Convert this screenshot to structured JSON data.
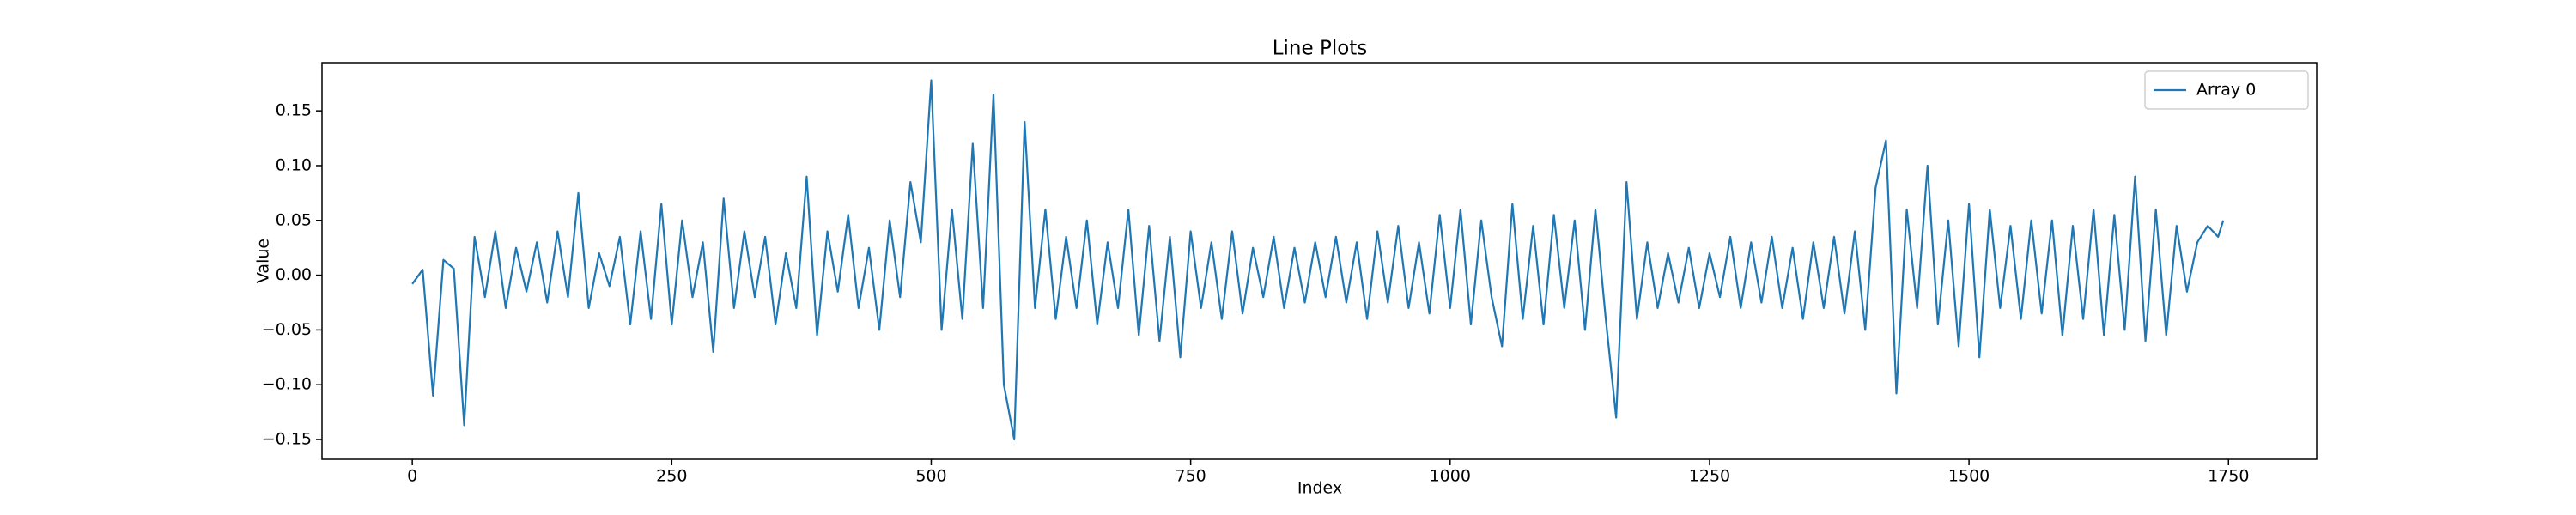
{
  "chart_data": {
    "type": "line",
    "title": "Line Plots",
    "x_label": "Index",
    "y_label": "Value",
    "x": [
      0,
      10,
      20,
      30,
      40,
      50,
      60,
      70,
      80,
      90,
      100,
      110,
      120,
      130,
      140,
      150,
      160,
      170,
      180,
      190,
      200,
      210,
      220,
      230,
      240,
      250,
      260,
      270,
      280,
      290,
      300,
      310,
      320,
      330,
      340,
      350,
      360,
      370,
      380,
      390,
      400,
      410,
      420,
      430,
      440,
      450,
      460,
      470,
      480,
      490,
      500,
      510,
      520,
      530,
      540,
      550,
      560,
      570,
      580,
      590,
      600,
      610,
      620,
      630,
      640,
      650,
      660,
      670,
      680,
      690,
      700,
      710,
      720,
      730,
      740,
      750,
      760,
      770,
      780,
      790,
      800,
      810,
      820,
      830,
      840,
      850,
      860,
      870,
      880,
      890,
      900,
      910,
      920,
      930,
      940,
      950,
      960,
      970,
      980,
      990,
      1000,
      1010,
      1020,
      1030,
      1040,
      1050,
      1060,
      1070,
      1080,
      1090,
      1100,
      1110,
      1120,
      1130,
      1140,
      1150,
      1160,
      1170,
      1180,
      1190,
      1200,
      1210,
      1220,
      1230,
      1240,
      1250,
      1260,
      1270,
      1280,
      1290,
      1300,
      1310,
      1320,
      1330,
      1340,
      1350,
      1360,
      1370,
      1380,
      1390,
      1400,
      1410,
      1420,
      1430,
      1440,
      1450,
      1460,
      1470,
      1480,
      1490,
      1500,
      1510,
      1520,
      1530,
      1540,
      1550,
      1560,
      1570,
      1580,
      1590,
      1600,
      1610,
      1620,
      1630,
      1640,
      1650,
      1660,
      1670,
      1680,
      1690,
      1700,
      1710,
      1720,
      1730,
      1740,
      1745
    ],
    "series": [
      {
        "name": "Array 0",
        "color": "#1f77b4",
        "values": [
          -0.008,
          0.005,
          -0.11,
          0.014,
          0.006,
          -0.137,
          0.035,
          -0.02,
          0.04,
          -0.03,
          0.025,
          -0.015,
          0.03,
          -0.025,
          0.04,
          -0.02,
          0.075,
          -0.03,
          0.02,
          -0.01,
          0.035,
          -0.045,
          0.04,
          -0.04,
          0.065,
          -0.045,
          0.05,
          -0.02,
          0.03,
          -0.07,
          0.07,
          -0.03,
          0.04,
          -0.02,
          0.035,
          -0.045,
          0.02,
          -0.03,
          0.09,
          -0.055,
          0.04,
          -0.015,
          0.055,
          -0.03,
          0.025,
          -0.05,
          0.05,
          -0.02,
          0.085,
          0.03,
          0.178,
          -0.05,
          0.06,
          -0.04,
          0.12,
          -0.03,
          0.165,
          -0.1,
          -0.15,
          0.14,
          -0.03,
          0.06,
          -0.04,
          0.035,
          -0.03,
          0.05,
          -0.045,
          0.03,
          -0.03,
          0.06,
          -0.055,
          0.045,
          -0.06,
          0.035,
          -0.075,
          0.04,
          -0.03,
          0.03,
          -0.04,
          0.04,
          -0.035,
          0.025,
          -0.02,
          0.035,
          -0.03,
          0.025,
          -0.025,
          0.03,
          -0.02,
          0.035,
          -0.025,
          0.03,
          -0.04,
          0.04,
          -0.025,
          0.045,
          -0.03,
          0.03,
          -0.035,
          0.055,
          -0.03,
          0.06,
          -0.045,
          0.05,
          -0.02,
          -0.065,
          0.065,
          -0.04,
          0.045,
          -0.045,
          0.055,
          -0.03,
          0.05,
          -0.05,
          0.06,
          -0.04,
          -0.13,
          0.085,
          -0.04,
          0.03,
          -0.03,
          0.02,
          -0.025,
          0.025,
          -0.03,
          0.02,
          -0.02,
          0.035,
          -0.03,
          0.03,
          -0.025,
          0.035,
          -0.03,
          0.025,
          -0.04,
          0.03,
          -0.03,
          0.035,
          -0.035,
          0.04,
          -0.05,
          0.08,
          0.123,
          -0.108,
          0.06,
          -0.03,
          0.1,
          -0.045,
          0.05,
          -0.065,
          0.065,
          -0.075,
          0.06,
          -0.03,
          0.045,
          -0.04,
          0.05,
          -0.035,
          0.05,
          -0.055,
          0.045,
          -0.04,
          0.06,
          -0.055,
          0.055,
          -0.05,
          0.09,
          -0.06,
          0.06,
          -0.055,
          0.045,
          -0.015,
          0.03,
          0.045,
          0.035,
          0.05
        ]
      }
    ],
    "xlim": [
      -87,
      1835
    ],
    "ylim": [
      -0.168,
      0.194
    ],
    "xticks": [
      0,
      250,
      500,
      750,
      1000,
      1250,
      1500,
      1750
    ],
    "yticks": [
      {
        "value": -0.15,
        "label": "−0.15"
      },
      {
        "value": -0.1,
        "label": "−0.10"
      },
      {
        "value": -0.05,
        "label": "−0.05"
      },
      {
        "value": 0,
        "label": "0.00"
      },
      0.05,
      {
        "value": 0.1,
        "label": "0.10"
      },
      0.15
    ],
    "legend": "upper right"
  }
}
